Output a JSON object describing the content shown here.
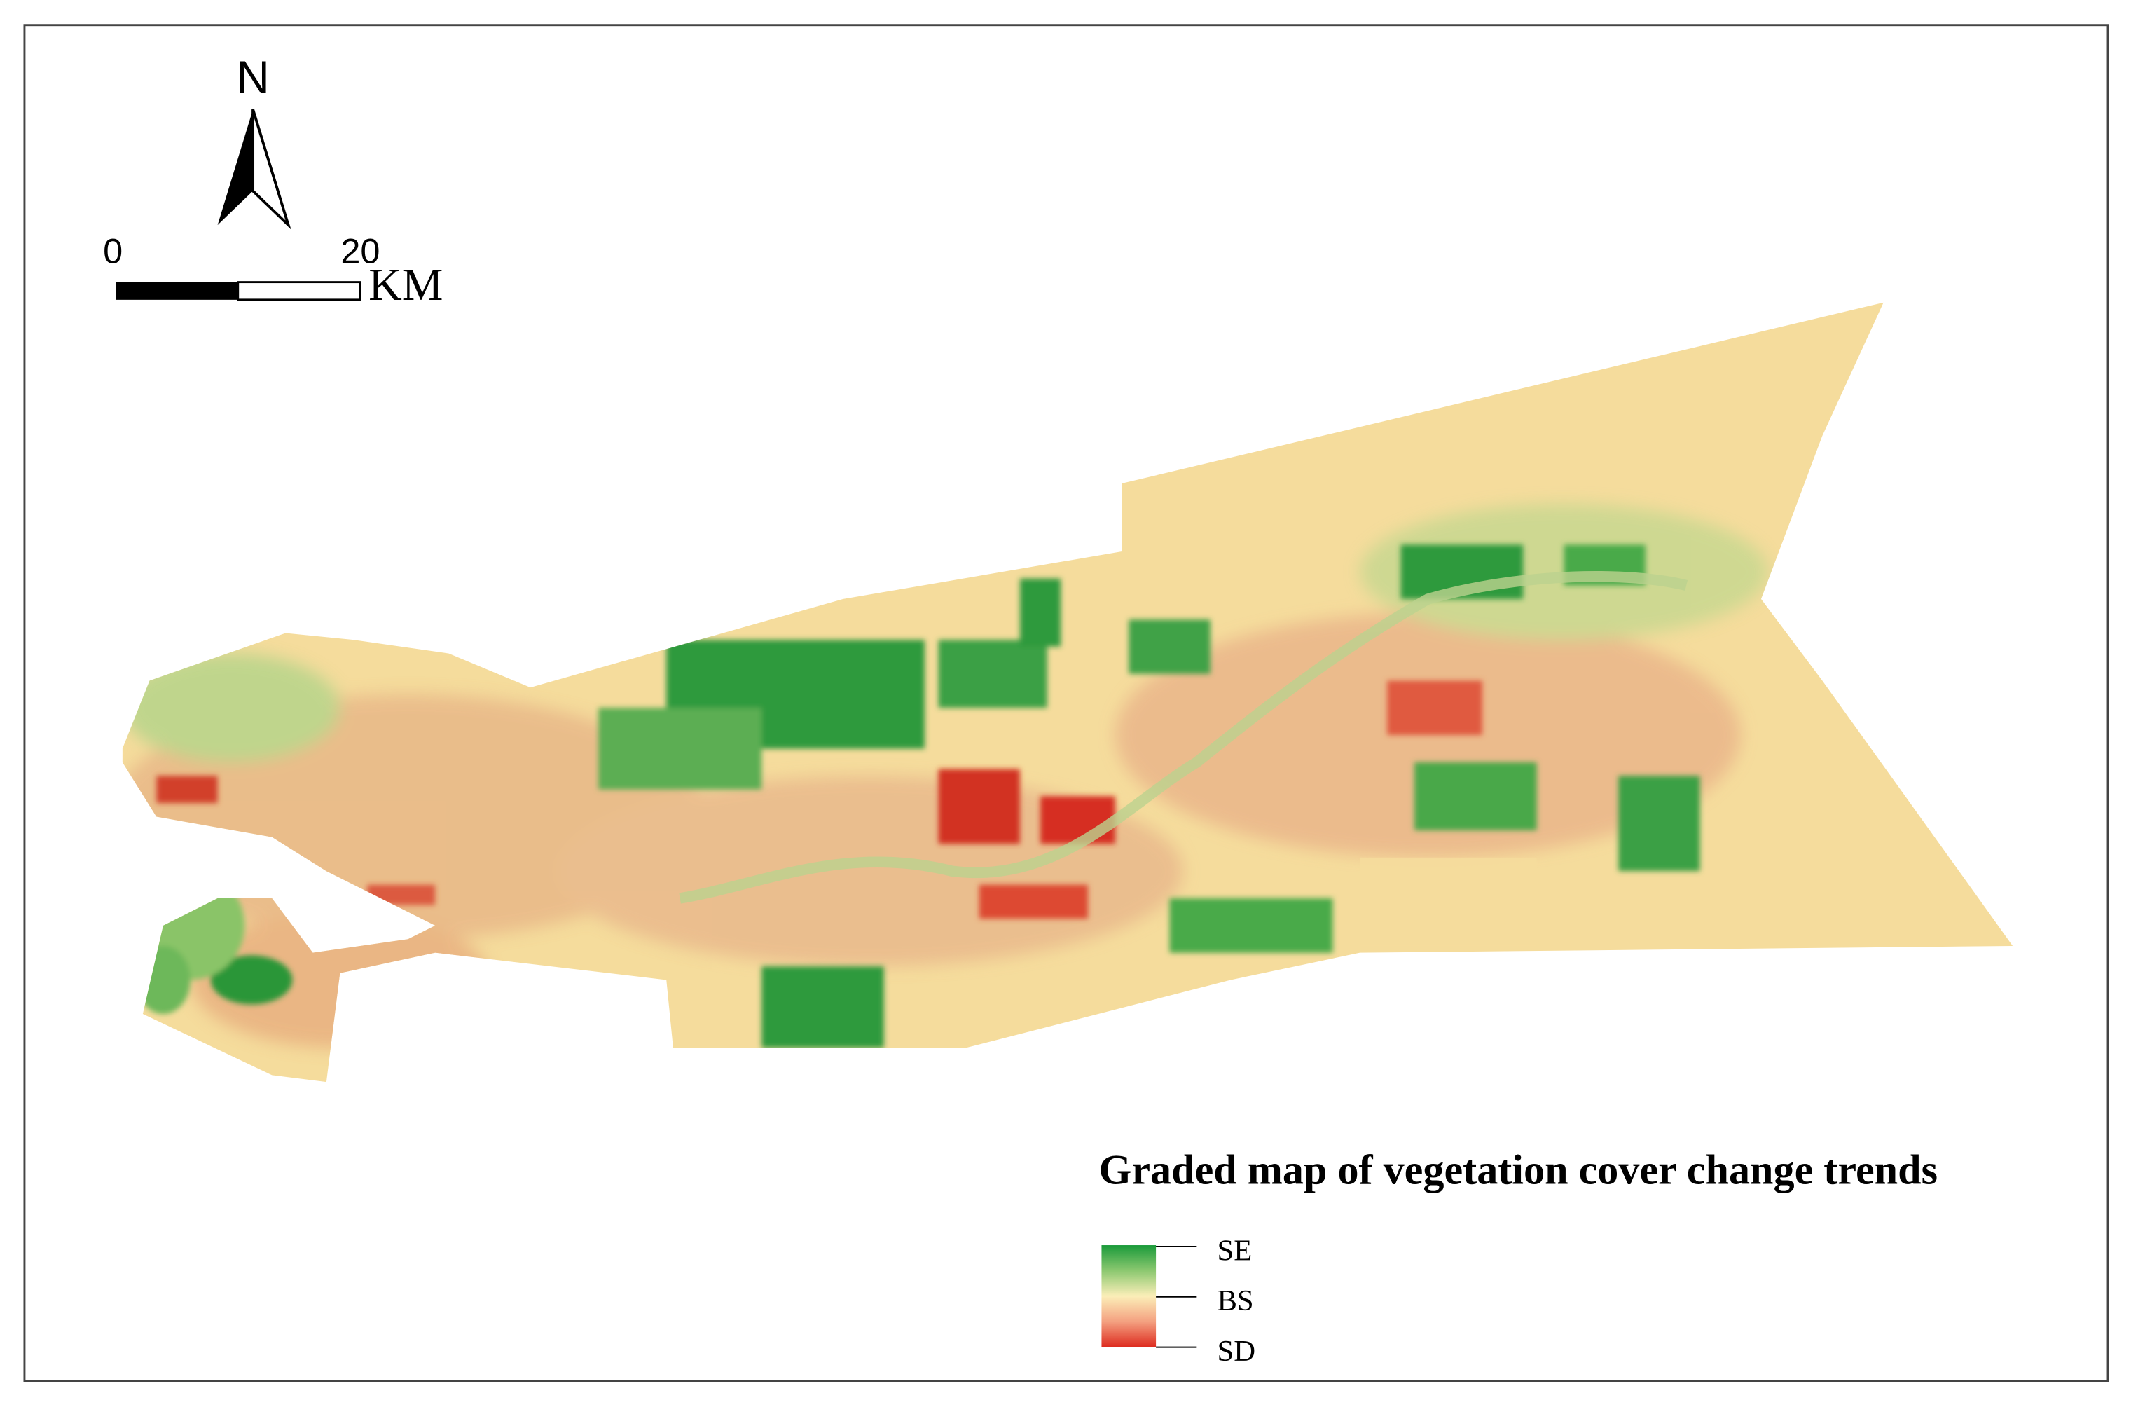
{
  "north_arrow": {
    "label": "N"
  },
  "scale_bar": {
    "start_label": "0",
    "end_label": "20",
    "unit": "KM"
  },
  "legend": {
    "title": "Graded map of vegetation cover change trends",
    "labels": [
      "SE",
      "BS",
      "SD"
    ]
  }
}
